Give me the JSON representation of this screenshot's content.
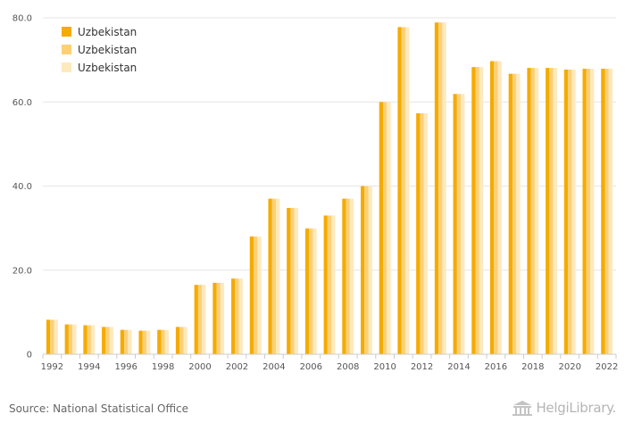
{
  "chart_data": {
    "type": "bar",
    "categories": [
      "1992",
      "1993",
      "1994",
      "1995",
      "1996",
      "1997",
      "1998",
      "1999",
      "2000",
      "2001",
      "2002",
      "2003",
      "2004",
      "2005",
      "2006",
      "2007",
      "2008",
      "2009",
      "2010",
      "2011",
      "2012",
      "2013",
      "2014",
      "2015",
      "2016",
      "2017",
      "2018",
      "2019",
      "2020",
      "2021",
      "2022"
    ],
    "x_tick_labels": [
      "1992",
      "1994",
      "1996",
      "1998",
      "2000",
      "2002",
      "2004",
      "2006",
      "2008",
      "2010",
      "2012",
      "2014",
      "2016",
      "2018",
      "2020",
      "2022"
    ],
    "y_tick_labels": [
      "0",
      "20.0",
      "40.0",
      "60.0",
      "80.0"
    ],
    "ylim": [
      0,
      80
    ],
    "grid": true,
    "legend_position": "top-left",
    "series": [
      {
        "name": "Uzbekistan",
        "color": "#f5ab00",
        "values": [
          8.2,
          7.1,
          6.9,
          6.5,
          5.8,
          5.6,
          5.8,
          6.5,
          16.5,
          17.0,
          18.0,
          28.0,
          37.0,
          34.8,
          29.9,
          33.0,
          37.0,
          40.0,
          60.0,
          77.8,
          57.3,
          78.9,
          61.9,
          68.3,
          69.7,
          66.7,
          68.1,
          68.1,
          67.7,
          67.9,
          67.9
        ]
      },
      {
        "name": "Uzbekistan",
        "color": "#fdd076",
        "values": [
          8.2,
          7.1,
          6.9,
          6.5,
          5.8,
          5.6,
          5.8,
          6.5,
          16.5,
          17.0,
          18.0,
          28.0,
          37.0,
          34.8,
          29.9,
          33.0,
          37.0,
          40.0,
          60.0,
          77.8,
          57.3,
          78.9,
          61.9,
          68.3,
          69.7,
          66.7,
          68.1,
          68.1,
          67.7,
          67.9,
          67.9
        ]
      },
      {
        "name": "Uzbekistan",
        "color": "#fde9bd",
        "values": [
          8.2,
          7.1,
          6.9,
          6.5,
          5.8,
          5.6,
          5.8,
          6.5,
          16.5,
          17.0,
          18.0,
          28.0,
          37.0,
          34.8,
          29.9,
          33.0,
          37.0,
          40.0,
          60.0,
          77.8,
          57.3,
          78.9,
          61.9,
          68.3,
          69.7,
          66.7,
          68.1,
          68.1,
          67.7,
          67.9,
          67.9
        ]
      }
    ]
  },
  "footer": {
    "source": "Source: National Statistical Office",
    "logo_text": "HelgiLibrary."
  }
}
